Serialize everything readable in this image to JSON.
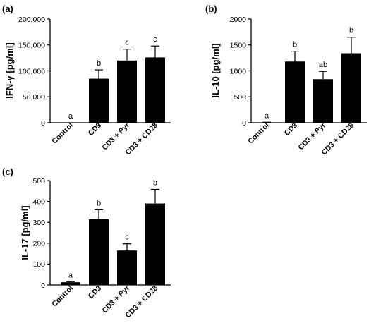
{
  "chart_data": [
    {
      "panel_label": "(a)",
      "type": "bar",
      "ylabel": "IFN-γ [pg/ml]",
      "categories": [
        "Control",
        "CD3",
        "CD3 + Pyr",
        "CD3 + CD28"
      ],
      "values": [
        0,
        85000,
        120000,
        126000
      ],
      "errors": [
        0,
        17000,
        22000,
        22000
      ],
      "significance": [
        "a",
        "b",
        "c",
        "c"
      ],
      "ylim": [
        0,
        200000
      ],
      "yticks": [
        0,
        50000,
        100000,
        150000,
        200000
      ],
      "ytick_labels": [
        "0",
        "50,000",
        "100,000",
        "150,000",
        "200,000"
      ],
      "bar_color": "#000000"
    },
    {
      "panel_label": "(b)",
      "type": "bar",
      "ylabel": "IL-10 [pg/ml]",
      "categories": [
        "Control",
        "CD3",
        "CD3 + Pyr",
        "CD3 + CD28"
      ],
      "values": [
        5,
        1180,
        840,
        1340
      ],
      "errors": [
        5,
        200,
        150,
        310
      ],
      "significance": [
        "a",
        "b",
        "ab",
        "b"
      ],
      "ylim": [
        0,
        2000
      ],
      "yticks": [
        0,
        500,
        1000,
        1500,
        2000
      ],
      "ytick_labels": [
        "0",
        "500",
        "1000",
        "1500",
        "2000"
      ],
      "bar_color": "#000000"
    },
    {
      "panel_label": "(c)",
      "type": "bar",
      "ylabel": "IL-17 [pg/ml]",
      "categories": [
        "Control",
        "CD3",
        "CD3 + Pyr",
        "CD3 + CD28"
      ],
      "values": [
        13,
        315,
        165,
        390
      ],
      "errors": [
        3,
        45,
        32,
        68
      ],
      "significance": [
        "a",
        "b",
        "c",
        "b"
      ],
      "ylim": [
        0,
        500
      ],
      "yticks": [
        0,
        100,
        200,
        300,
        400,
        500
      ],
      "ytick_labels": [
        "0",
        "100",
        "200",
        "300",
        "400",
        "500"
      ],
      "bar_color": "#000000"
    }
  ]
}
